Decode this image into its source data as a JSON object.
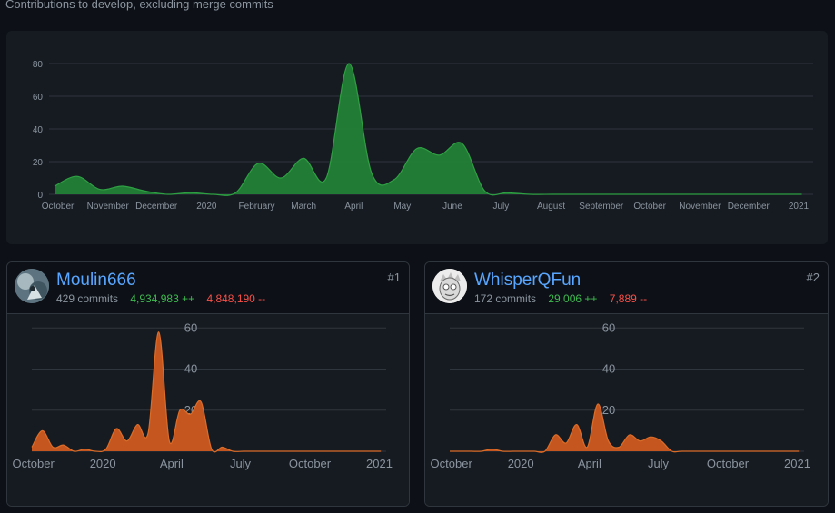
{
  "page": {
    "subtitle": "Contributions to develop, excluding merge commits"
  },
  "colors": {
    "main_fill": "#238636",
    "main_stroke": "#2ea043",
    "user_fill": "#c6561f",
    "user_stroke": "#db6d28",
    "grid": "#30363d",
    "axis_text": "#8b949e"
  },
  "chart_data": [
    {
      "type": "area",
      "x_ticks": [
        "October",
        "November",
        "December",
        "2020",
        "February",
        "March",
        "April",
        "May",
        "June",
        "July",
        "August",
        "September",
        "October",
        "November",
        "December",
        "2021"
      ],
      "x": [
        "2019-09-29",
        "2019-10-13",
        "2019-10-27",
        "2019-11-10",
        "2019-11-24",
        "2019-12-08",
        "2019-12-22",
        "2020-01-05",
        "2020-01-19",
        "2020-02-02",
        "2020-02-16",
        "2020-03-01",
        "2020-03-15",
        "2020-03-29",
        "2020-04-12",
        "2020-04-26",
        "2020-05-10",
        "2020-05-24",
        "2020-06-07",
        "2020-06-21",
        "2020-07-05",
        "2020-07-19",
        "2020-08-02",
        "2020-08-16",
        "2020-09-13",
        "2020-10-11",
        "2020-11-08",
        "2020-12-06",
        "2021-01-03"
      ],
      "values": [
        5,
        11,
        3,
        5,
        2,
        0,
        1,
        0,
        1,
        19,
        10,
        22,
        10,
        80,
        13,
        9,
        28,
        24,
        31,
        2,
        1,
        0,
        0,
        0,
        0,
        0,
        0,
        0,
        0
      ],
      "ylim": [
        0,
        85
      ],
      "y_ticks": [
        0,
        20,
        40,
        60,
        80
      ],
      "grid": true
    },
    {
      "type": "area",
      "x_ticks": [
        "October",
        "2020",
        "April",
        "July",
        "October",
        "2021"
      ],
      "x": [
        "2019-09-29",
        "2019-10-13",
        "2019-10-27",
        "2019-11-10",
        "2019-11-24",
        "2019-12-08",
        "2019-12-22",
        "2020-01-05",
        "2020-01-19",
        "2020-02-02",
        "2020-02-16",
        "2020-03-01",
        "2020-03-15",
        "2020-03-29",
        "2020-04-12",
        "2020-04-26",
        "2020-05-10",
        "2020-05-24",
        "2020-06-07",
        "2020-06-21",
        "2020-07-05",
        "2020-07-19",
        "2020-08-02",
        "2020-09-13",
        "2020-10-11",
        "2020-11-08",
        "2020-12-06",
        "2021-01-03"
      ],
      "values": [
        2,
        10,
        2,
        3,
        0,
        1,
        0,
        1,
        11,
        5,
        13,
        9,
        58,
        5,
        20,
        18,
        24,
        1,
        2,
        0,
        0,
        0,
        0,
        0,
        0,
        0,
        0,
        0
      ],
      "ylim": [
        0,
        65
      ],
      "y_ticks": [
        20,
        40,
        60
      ],
      "grid": true
    },
    {
      "type": "area",
      "x_ticks": [
        "October",
        "2020",
        "April",
        "July",
        "October",
        "2021"
      ],
      "x": [
        "2019-09-29",
        "2019-10-13",
        "2019-10-27",
        "2019-11-10",
        "2019-11-24",
        "2019-12-08",
        "2019-12-22",
        "2020-01-05",
        "2020-01-19",
        "2020-02-02",
        "2020-02-16",
        "2020-03-01",
        "2020-03-15",
        "2020-03-29",
        "2020-04-12",
        "2020-04-26",
        "2020-05-10",
        "2020-05-24",
        "2020-06-07",
        "2020-06-21",
        "2020-07-05",
        "2020-07-19",
        "2020-08-02",
        "2020-09-13",
        "2020-10-11",
        "2020-11-08",
        "2020-12-06",
        "2021-01-03"
      ],
      "values": [
        0,
        0,
        0,
        0,
        1,
        0,
        0,
        0,
        0,
        0,
        8,
        4,
        13,
        2,
        23,
        5,
        2,
        8,
        5,
        7,
        5,
        0,
        0,
        0,
        0,
        0,
        0,
        0
      ],
      "ylim": [
        0,
        65
      ],
      "y_ticks": [
        20,
        40,
        60
      ],
      "grid": true
    }
  ],
  "contributors": [
    {
      "name": "Moulin666",
      "commits": "429 commits",
      "additions": "4,934,983 ++",
      "deletions": "4,848,190 --",
      "rank": "#1"
    },
    {
      "name": "WhisperQFun",
      "commits": "172 commits",
      "additions": "29,006 ++",
      "deletions": "7,889 --",
      "rank": "#2"
    }
  ]
}
